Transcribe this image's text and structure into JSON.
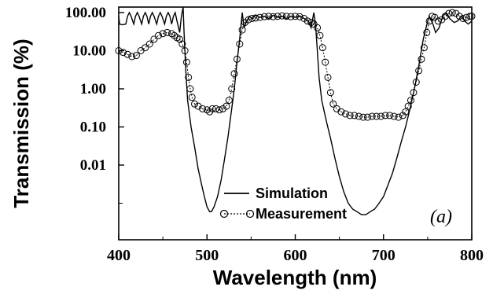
{
  "chart_data": {
    "type": "line",
    "xlabel": "Wavelength (nm)",
    "ylabel": "Transmission (%)",
    "xlim": [
      400,
      800
    ],
    "ylim": [
      0.0001,
      200
    ],
    "yscale": "log",
    "x_ticks": [
      "400",
      "500",
      "600",
      "700",
      "800"
    ],
    "y_ticks": [
      {
        "value": 100,
        "label": "100.00"
      },
      {
        "value": 10,
        "label": "10.00"
      },
      {
        "value": 1,
        "label": "1.00"
      },
      {
        "value": 0.1,
        "label": "0.10"
      },
      {
        "value": 0.01,
        "label": "0.01"
      }
    ],
    "panel_label": "(a)",
    "legend_position": "bottom-center",
    "series": [
      {
        "name": "Simulation",
        "style": "solid-line",
        "color": "#000000",
        "points": [
          [
            400,
            80
          ],
          [
            401,
            50
          ],
          [
            404,
            48
          ],
          [
            408,
            50
          ],
          [
            410,
            80
          ],
          [
            412,
            100
          ],
          [
            414,
            80
          ],
          [
            417,
            50
          ],
          [
            419,
            80
          ],
          [
            421,
            100
          ],
          [
            423,
            80
          ],
          [
            426,
            50
          ],
          [
            428,
            80
          ],
          [
            430,
            100
          ],
          [
            432,
            80
          ],
          [
            434,
            50
          ],
          [
            436,
            80
          ],
          [
            438,
            100
          ],
          [
            440,
            80
          ],
          [
            443,
            50
          ],
          [
            445,
            80
          ],
          [
            447,
            100
          ],
          [
            449,
            80
          ],
          [
            452,
            50
          ],
          [
            454,
            80
          ],
          [
            456,
            100
          ],
          [
            458,
            80
          ],
          [
            460,
            50
          ],
          [
            462,
            80
          ],
          [
            464,
            100
          ],
          [
            466,
            60
          ],
          [
            469,
            30
          ],
          [
            471,
            80
          ],
          [
            473,
            150
          ],
          [
            474,
            30
          ],
          [
            476,
            3
          ],
          [
            478,
            0.5
          ],
          [
            482,
            0.1
          ],
          [
            486,
            0.03
          ],
          [
            490,
            0.008
          ],
          [
            494,
            0.003
          ],
          [
            497,
            0.0015
          ],
          [
            500,
            0.0008
          ],
          [
            503,
            0.0006
          ],
          [
            505,
            0.0006
          ],
          [
            508,
            0.0008
          ],
          [
            512,
            0.0015
          ],
          [
            516,
            0.004
          ],
          [
            520,
            0.015
          ],
          [
            524,
            0.06
          ],
          [
            528,
            0.3
          ],
          [
            531,
            1
          ],
          [
            534,
            5
          ],
          [
            537,
            20
          ],
          [
            540,
            100
          ],
          [
            542,
            40
          ],
          [
            545,
            60
          ],
          [
            548,
            80
          ],
          [
            551,
            70
          ],
          [
            555,
            85
          ],
          [
            560,
            75
          ],
          [
            565,
            80
          ],
          [
            570,
            70
          ],
          [
            575,
            85
          ],
          [
            580,
            75
          ],
          [
            585,
            80
          ],
          [
            590,
            70
          ],
          [
            595,
            80
          ],
          [
            600,
            75
          ],
          [
            605,
            82
          ],
          [
            610,
            70
          ],
          [
            615,
            60
          ],
          [
            618,
            40
          ],
          [
            621,
            100
          ],
          [
            623,
            50
          ],
          [
            625,
            10
          ],
          [
            627,
            2
          ],
          [
            630,
            0.5
          ],
          [
            635,
            0.15
          ],
          [
            640,
            0.05
          ],
          [
            645,
            0.015
          ],
          [
            650,
            0.005
          ],
          [
            655,
            0.002
          ],
          [
            660,
            0.001
          ],
          [
            665,
            0.0007
          ],
          [
            670,
            0.0006
          ],
          [
            675,
            0.0005
          ],
          [
            680,
            0.0005
          ],
          [
            685,
            0.0006
          ],
          [
            690,
            0.0007
          ],
          [
            695,
            0.001
          ],
          [
            700,
            0.0015
          ],
          [
            705,
            0.003
          ],
          [
            710,
            0.006
          ],
          [
            715,
            0.015
          ],
          [
            720,
            0.04
          ],
          [
            725,
            0.1
          ],
          [
            730,
            0.3
          ],
          [
            735,
            1
          ],
          [
            740,
            4
          ],
          [
            745,
            20
          ],
          [
            750,
            60
          ],
          [
            752,
            80
          ],
          [
            756,
            50
          ],
          [
            759,
            30
          ],
          [
            763,
            40
          ],
          [
            767,
            80
          ],
          [
            771,
            100
          ],
          [
            775,
            70
          ],
          [
            780,
            55
          ],
          [
            784,
            60
          ],
          [
            788,
            80
          ],
          [
            792,
            60
          ],
          [
            796,
            50
          ],
          [
            800,
            60
          ]
        ]
      },
      {
        "name": "Measurement",
        "style": "dotted-open-circles",
        "color": "#000000",
        "points": [
          [
            400,
            10
          ],
          [
            405,
            9
          ],
          [
            410,
            8
          ],
          [
            415,
            7
          ],
          [
            420,
            7.5
          ],
          [
            425,
            10
          ],
          [
            430,
            12
          ],
          [
            435,
            15
          ],
          [
            440,
            20
          ],
          [
            445,
            25
          ],
          [
            450,
            28
          ],
          [
            455,
            30
          ],
          [
            460,
            28
          ],
          [
            463,
            25
          ],
          [
            466,
            22
          ],
          [
            469,
            20
          ],
          [
            472,
            15
          ],
          [
            475,
            10
          ],
          [
            477,
            5
          ],
          [
            479,
            2
          ],
          [
            481,
            1
          ],
          [
            483,
            0.6
          ],
          [
            486,
            0.4
          ],
          [
            490,
            0.35
          ],
          [
            495,
            0.3
          ],
          [
            500,
            0.28
          ],
          [
            503,
            0.25
          ],
          [
            506,
            0.3
          ],
          [
            510,
            0.3
          ],
          [
            514,
            0.28
          ],
          [
            518,
            0.3
          ],
          [
            522,
            0.35
          ],
          [
            525,
            0.5
          ],
          [
            528,
            1
          ],
          [
            531,
            2.5
          ],
          [
            534,
            6
          ],
          [
            537,
            15
          ],
          [
            540,
            35
          ],
          [
            543,
            55
          ],
          [
            547,
            65
          ],
          [
            551,
            70
          ],
          [
            555,
            72
          ],
          [
            560,
            75
          ],
          [
            565,
            78
          ],
          [
            570,
            80
          ],
          [
            575,
            78
          ],
          [
            580,
            80
          ],
          [
            585,
            82
          ],
          [
            590,
            80
          ],
          [
            595,
            78
          ],
          [
            600,
            80
          ],
          [
            605,
            78
          ],
          [
            610,
            70
          ],
          [
            614,
            60
          ],
          [
            618,
            55
          ],
          [
            621,
            50
          ],
          [
            625,
            40
          ],
          [
            628,
            25
          ],
          [
            631,
            12
          ],
          [
            634,
            5
          ],
          [
            637,
            2
          ],
          [
            640,
            0.8
          ],
          [
            643,
            0.4
          ],
          [
            647,
            0.3
          ],
          [
            652,
            0.25
          ],
          [
            657,
            0.22
          ],
          [
            662,
            0.2
          ],
          [
            667,
            0.2
          ],
          [
            672,
            0.19
          ],
          [
            677,
            0.18
          ],
          [
            682,
            0.18
          ],
          [
            687,
            0.19
          ],
          [
            692,
            0.19
          ],
          [
            697,
            0.19
          ],
          [
            702,
            0.2
          ],
          [
            707,
            0.2
          ],
          [
            712,
            0.19
          ],
          [
            717,
            0.18
          ],
          [
            722,
            0.2
          ],
          [
            725,
            0.25
          ],
          [
            728,
            0.35
          ],
          [
            731,
            0.5
          ],
          [
            734,
            0.8
          ],
          [
            737,
            1.5
          ],
          [
            740,
            3
          ],
          [
            743,
            6
          ],
          [
            746,
            12
          ],
          [
            749,
            30
          ],
          [
            752,
            60
          ],
          [
            755,
            80
          ],
          [
            758,
            75
          ],
          [
            762,
            60
          ],
          [
            766,
            65
          ],
          [
            770,
            80
          ],
          [
            774,
            95
          ],
          [
            778,
            100
          ],
          [
            782,
            95
          ],
          [
            786,
            80
          ],
          [
            790,
            70
          ],
          [
            794,
            75
          ],
          [
            798,
            80
          ],
          [
            800,
            80
          ]
        ]
      }
    ]
  }
}
